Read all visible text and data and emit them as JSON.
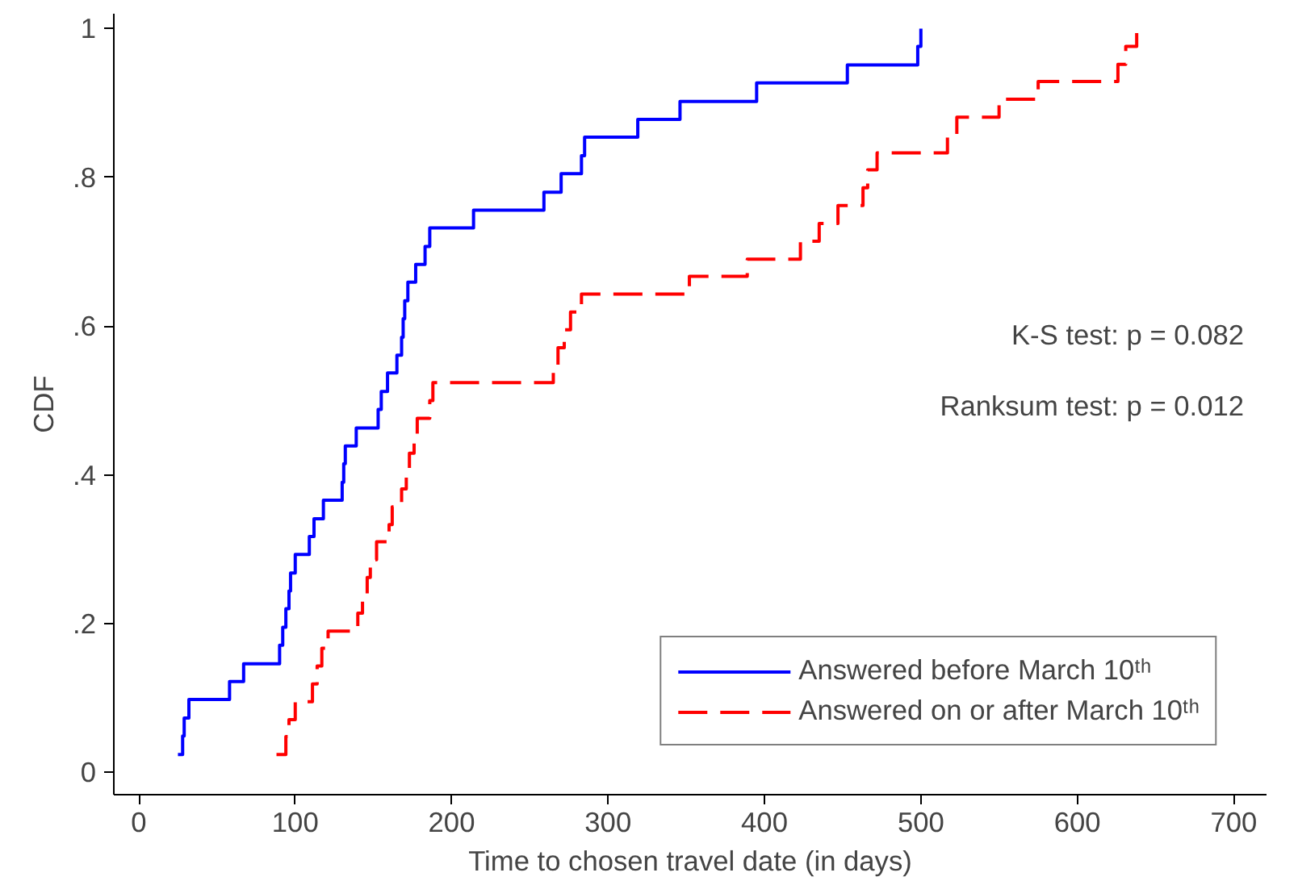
{
  "chart_data": {
    "type": "step",
    "xlabel": "Time to chosen travel date (in days)",
    "ylabel": "CDF",
    "xlim": [
      -16,
      721
    ],
    "ylim": [
      -0.03,
      1.02
    ],
    "xticks": [
      0,
      100,
      200,
      300,
      400,
      500,
      600,
      700
    ],
    "yticks": [
      {
        "value": 0,
        "label": "0"
      },
      {
        "value": 0.2,
        "label": ".2"
      },
      {
        "value": 0.4,
        "label": ".4"
      },
      {
        "value": 0.6,
        "label": ".6"
      },
      {
        "value": 0.8,
        "label": ".8"
      },
      {
        "value": 1,
        "label": "1"
      }
    ],
    "grid": false,
    "legend": "bottom right",
    "annotations": [
      "K-S test: p = 0.082",
      "Ranksum test: p = 0.012"
    ],
    "series": [
      {
        "name": "Answered before March 10ᵗʰ",
        "color": "#0000ff",
        "line_style": "solid",
        "x": [
          25,
          28,
          29,
          32,
          58,
          67,
          90,
          92,
          94,
          96,
          97,
          100,
          109,
          112,
          118,
          130,
          131,
          132,
          139,
          153,
          155,
          159,
          165,
          168,
          169,
          170,
          172,
          177,
          183,
          186,
          214,
          259,
          270,
          283,
          285,
          319,
          346,
          395,
          453,
          498,
          500
        ],
        "values": [
          0.024,
          0.049,
          0.073,
          0.098,
          0.122,
          0.146,
          0.171,
          0.195,
          0.22,
          0.244,
          0.268,
          0.293,
          0.317,
          0.341,
          0.366,
          0.39,
          0.415,
          0.439,
          0.463,
          0.488,
          0.512,
          0.537,
          0.561,
          0.585,
          0.61,
          0.634,
          0.659,
          0.683,
          0.707,
          0.732,
          0.756,
          0.78,
          0.805,
          0.829,
          0.854,
          0.878,
          0.902,
          0.927,
          0.951,
          0.976,
          1.0
        ]
      },
      {
        "name": "Answered on or after March 10ᵗʰ",
        "color": "#ff0000",
        "line_style": "dashed",
        "x": [
          88,
          94,
          96,
          100,
          111,
          114,
          117,
          121,
          140,
          143,
          146,
          148,
          152,
          160,
          162,
          168,
          171,
          173,
          176,
          178,
          186,
          188,
          265,
          268,
          272,
          276,
          283,
          352,
          389,
          423,
          435,
          447,
          463,
          466,
          472,
          517,
          523,
          550,
          575,
          626,
          631,
          638
        ],
        "values": [
          0.024,
          0.048,
          0.071,
          0.095,
          0.119,
          0.143,
          0.167,
          0.19,
          0.214,
          0.238,
          0.262,
          0.286,
          0.31,
          0.333,
          0.357,
          0.381,
          0.405,
          0.429,
          0.452,
          0.476,
          0.5,
          0.524,
          0.548,
          0.571,
          0.595,
          0.619,
          0.643,
          0.667,
          0.69,
          0.714,
          0.738,
          0.762,
          0.786,
          0.81,
          0.833,
          0.857,
          0.881,
          0.905,
          0.929,
          0.952,
          0.976,
          1.0
        ]
      }
    ]
  }
}
